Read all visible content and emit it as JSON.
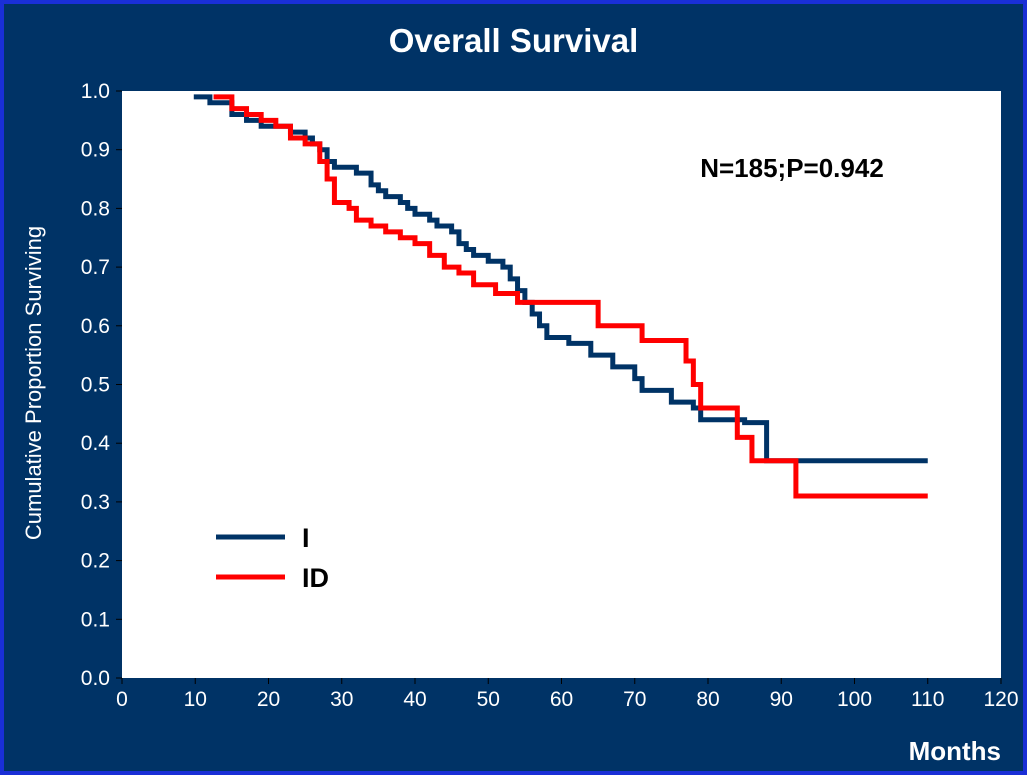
{
  "chart_data": {
    "type": "line",
    "title": "Overall Survival",
    "xlabel": "Months",
    "ylabel": "Cumulative Proportion Surviving",
    "annotation": "N=185;P=0.942",
    "xlim": [
      0,
      120
    ],
    "ylim": [
      0,
      1.0
    ],
    "xticks": [
      "0",
      "10",
      "20",
      "30",
      "40",
      "50",
      "60",
      "70",
      "80",
      "90",
      "100",
      "110",
      "120"
    ],
    "yticks": [
      "0.0",
      "0.1",
      "0.2",
      "0.3",
      "0.4",
      "0.5",
      "0.6",
      "0.7",
      "0.8",
      "0.9",
      "1.0"
    ],
    "grid": false,
    "legend_position": "bottom-left",
    "series": [
      {
        "name": "I",
        "color": "#003366",
        "step": true,
        "points": [
          [
            9.8,
            0.99
          ],
          [
            12,
            0.98
          ],
          [
            15,
            0.96
          ],
          [
            17,
            0.95
          ],
          [
            19,
            0.94
          ],
          [
            23,
            0.93
          ],
          [
            25,
            0.92
          ],
          [
            26,
            0.91
          ],
          [
            27,
            0.9
          ],
          [
            28,
            0.88
          ],
          [
            29,
            0.87
          ],
          [
            32,
            0.86
          ],
          [
            34,
            0.84
          ],
          [
            35,
            0.83
          ],
          [
            36,
            0.82
          ],
          [
            38,
            0.81
          ],
          [
            39,
            0.8
          ],
          [
            40,
            0.79
          ],
          [
            42,
            0.78
          ],
          [
            43,
            0.77
          ],
          [
            45,
            0.76
          ],
          [
            46,
            0.74
          ],
          [
            47,
            0.73
          ],
          [
            48,
            0.72
          ],
          [
            50,
            0.71
          ],
          [
            52,
            0.7
          ],
          [
            53,
            0.68
          ],
          [
            54,
            0.66
          ],
          [
            55,
            0.64
          ],
          [
            56,
            0.62
          ],
          [
            57,
            0.6
          ],
          [
            58,
            0.58
          ],
          [
            61,
            0.57
          ],
          [
            64,
            0.55
          ],
          [
            67,
            0.53
          ],
          [
            70,
            0.51
          ],
          [
            71,
            0.49
          ],
          [
            75,
            0.47
          ],
          [
            78,
            0.46
          ],
          [
            79,
            0.44
          ],
          [
            85,
            0.435
          ],
          [
            88,
            0.37
          ],
          [
            110,
            0.37
          ]
        ]
      },
      {
        "name": "ID",
        "color": "#ff0000",
        "step": true,
        "points": [
          [
            12.5,
            0.99
          ],
          [
            15,
            0.97
          ],
          [
            17,
            0.96
          ],
          [
            19,
            0.95
          ],
          [
            21,
            0.94
          ],
          [
            23,
            0.92
          ],
          [
            25,
            0.91
          ],
          [
            27,
            0.88
          ],
          [
            28,
            0.85
          ],
          [
            29,
            0.81
          ],
          [
            31,
            0.8
          ],
          [
            32,
            0.78
          ],
          [
            34,
            0.77
          ],
          [
            36,
            0.76
          ],
          [
            38,
            0.75
          ],
          [
            40,
            0.74
          ],
          [
            42,
            0.72
          ],
          [
            44,
            0.7
          ],
          [
            46,
            0.69
          ],
          [
            48,
            0.67
          ],
          [
            51,
            0.655
          ],
          [
            54,
            0.64
          ],
          [
            65,
            0.6
          ],
          [
            71,
            0.575
          ],
          [
            77,
            0.54
          ],
          [
            78,
            0.5
          ],
          [
            79,
            0.46
          ],
          [
            84,
            0.41
          ],
          [
            86,
            0.37
          ],
          [
            92,
            0.31
          ],
          [
            110,
            0.31
          ]
        ]
      }
    ]
  }
}
